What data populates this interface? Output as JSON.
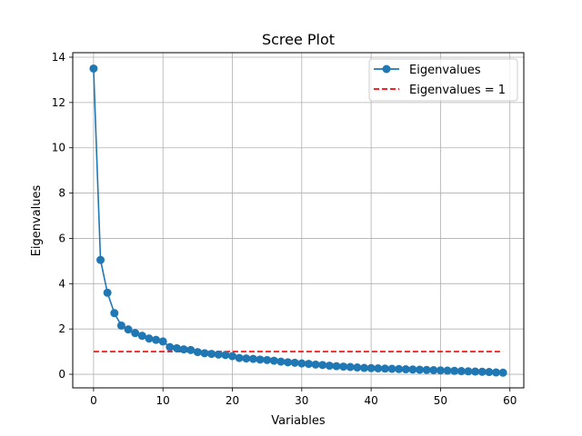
{
  "chart_data": {
    "type": "line",
    "title": "Scree Plot",
    "xlabel": "Variables",
    "ylabel": "Eigenvalues",
    "xlim": [
      -3,
      62
    ],
    "ylim": [
      -0.6,
      14.2
    ],
    "xticks": [
      0,
      10,
      20,
      30,
      40,
      50,
      60
    ],
    "yticks": [
      0,
      2,
      4,
      6,
      8,
      10,
      12,
      14
    ],
    "grid": true,
    "legend_position": "top-right",
    "series": [
      {
        "name": "Eigenvalues",
        "style": "line-with-circle-markers",
        "color": "#1f77b4",
        "x": [
          0,
          1,
          2,
          3,
          4,
          5,
          6,
          7,
          8,
          9,
          10,
          11,
          12,
          13,
          14,
          15,
          16,
          17,
          18,
          19,
          20,
          21,
          22,
          23,
          24,
          25,
          26,
          27,
          28,
          29,
          30,
          31,
          32,
          33,
          34,
          35,
          36,
          37,
          38,
          39,
          40,
          41,
          42,
          43,
          44,
          45,
          46,
          47,
          48,
          49,
          50,
          51,
          52,
          53,
          54,
          55,
          56,
          57,
          58,
          59
        ],
        "values": [
          13.5,
          5.05,
          3.6,
          2.7,
          2.15,
          1.98,
          1.82,
          1.7,
          1.58,
          1.52,
          1.45,
          1.2,
          1.15,
          1.1,
          1.07,
          0.98,
          0.93,
          0.9,
          0.87,
          0.85,
          0.8,
          0.72,
          0.7,
          0.68,
          0.65,
          0.63,
          0.6,
          0.56,
          0.53,
          0.51,
          0.48,
          0.46,
          0.43,
          0.41,
          0.38,
          0.36,
          0.34,
          0.32,
          0.3,
          0.28,
          0.27,
          0.26,
          0.25,
          0.24,
          0.23,
          0.22,
          0.21,
          0.2,
          0.19,
          0.18,
          0.17,
          0.16,
          0.15,
          0.14,
          0.13,
          0.12,
          0.11,
          0.1,
          0.08,
          0.07
        ]
      },
      {
        "name": "Eigenvalues = 1",
        "style": "dashed-line",
        "color": "#ff0000",
        "x": [
          0,
          59
        ],
        "values": [
          1,
          1
        ]
      }
    ]
  }
}
